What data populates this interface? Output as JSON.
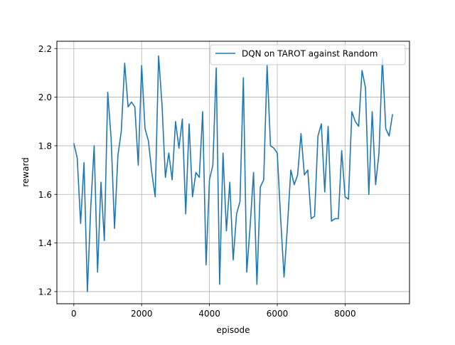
{
  "chart_data": {
    "type": "line",
    "title": "",
    "xlabel": "episode",
    "ylabel": "reward",
    "xlim": [
      -500,
      9900
    ],
    "ylim": [
      1.15,
      2.23
    ],
    "xticks": [
      0,
      2000,
      4000,
      6000,
      8000
    ],
    "xtick_labels": [
      "0",
      "2000",
      "4000",
      "6000",
      "8000"
    ],
    "yticks": [
      1.2,
      1.4,
      1.6,
      1.8,
      2.0,
      2.2
    ],
    "ytick_labels": [
      "1.2",
      "1.4",
      "1.6",
      "1.8",
      "2.0",
      "2.2"
    ],
    "grid": true,
    "legend": "top-right",
    "series": [
      {
        "name": "DQN on TAROT against Random",
        "color": "#1f77b4",
        "x": [
          0,
          100,
          200,
          300,
          400,
          500,
          600,
          700,
          800,
          900,
          1000,
          1100,
          1200,
          1300,
          1400,
          1500,
          1600,
          1700,
          1800,
          1900,
          2000,
          2100,
          2200,
          2300,
          2400,
          2500,
          2600,
          2700,
          2800,
          2900,
          3000,
          3100,
          3200,
          3300,
          3400,
          3500,
          3600,
          3700,
          3800,
          3900,
          4000,
          4100,
          4200,
          4300,
          4400,
          4500,
          4600,
          4700,
          4800,
          4900,
          5000,
          5100,
          5200,
          5300,
          5400,
          5500,
          5600,
          5700,
          5800,
          5900,
          6000,
          6100,
          6200,
          6300,
          6400,
          6500,
          6600,
          6700,
          6800,
          6900,
          7000,
          7100,
          7200,
          7300,
          7400,
          7500,
          7600,
          7700,
          7800,
          7900,
          8000,
          8100,
          8200,
          8300,
          8400,
          8500,
          8600,
          8700,
          8800,
          8900,
          9000,
          9100,
          9200,
          9300,
          9400
        ],
        "y": [
          1.81,
          1.75,
          1.48,
          1.73,
          1.2,
          1.55,
          1.8,
          1.28,
          1.65,
          1.41,
          2.02,
          1.83,
          1.46,
          1.76,
          1.86,
          2.14,
          1.96,
          1.98,
          1.96,
          1.72,
          2.13,
          1.87,
          1.82,
          1.69,
          1.59,
          2.17,
          1.97,
          1.67,
          1.77,
          1.66,
          1.9,
          1.79,
          1.91,
          1.52,
          1.89,
          1.59,
          1.69,
          1.67,
          1.94,
          1.31,
          1.66,
          1.72,
          2.12,
          1.23,
          1.77,
          1.45,
          1.65,
          1.33,
          1.52,
          1.57,
          2.08,
          1.28,
          1.47,
          1.69,
          1.23,
          1.63,
          1.66,
          2.13,
          1.8,
          1.79,
          1.77,
          1.5,
          1.26,
          1.47,
          1.7,
          1.64,
          1.68,
          1.85,
          1.68,
          1.7,
          1.5,
          1.51,
          1.84,
          1.89,
          1.61,
          1.88,
          1.49,
          1.5,
          1.5,
          1.78,
          1.59,
          1.58,
          1.94,
          1.9,
          1.88,
          2.11,
          2.04,
          1.6,
          1.94,
          1.64,
          1.77,
          2.16,
          1.87,
          1.84,
          1.93
        ]
      }
    ]
  }
}
